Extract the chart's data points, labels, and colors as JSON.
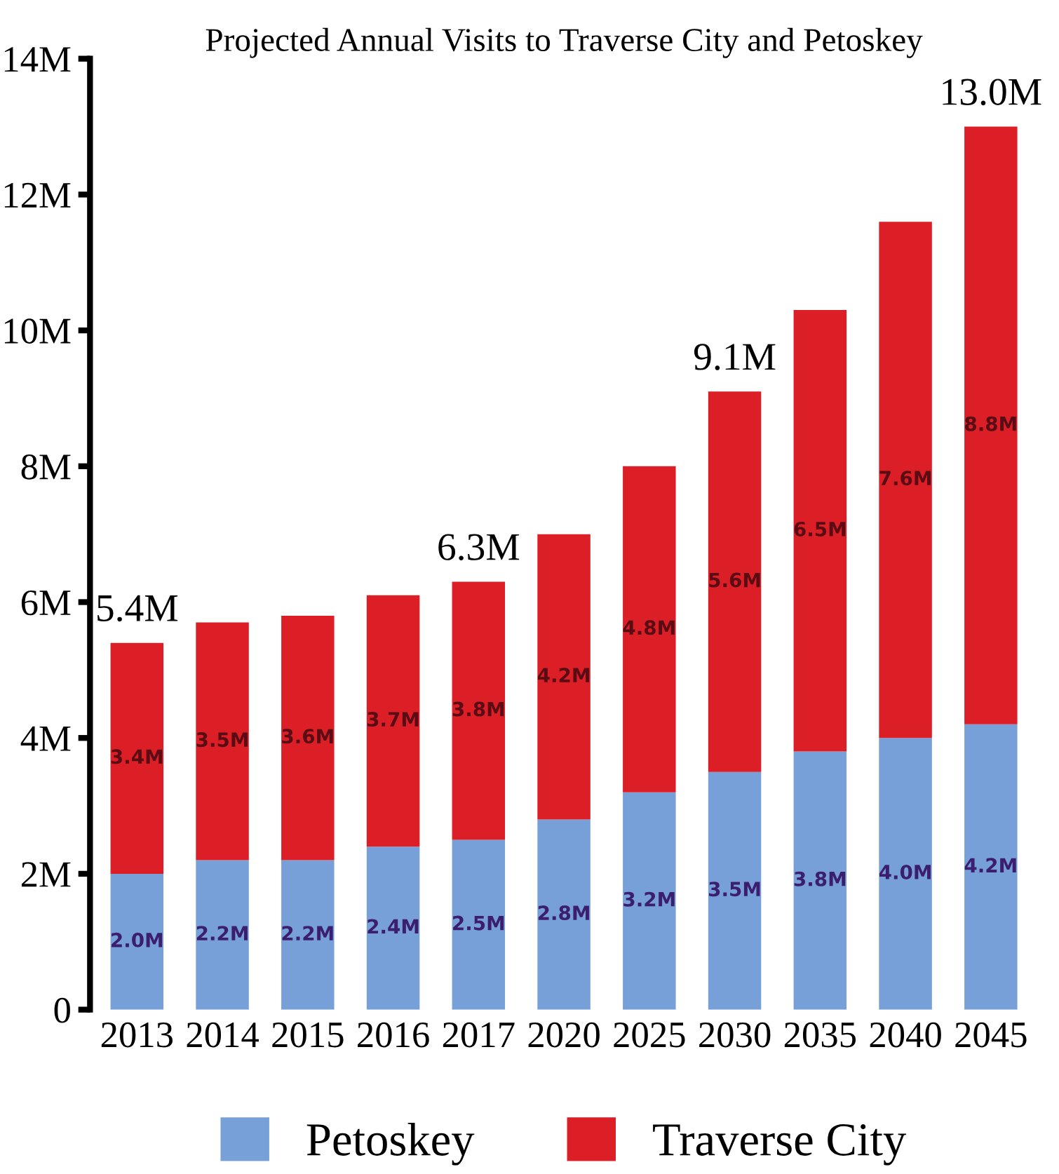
{
  "chart_data": {
    "type": "bar",
    "title": "Projected Annual Visits to Traverse City and Petoskey",
    "stacked": true,
    "categories": [
      "2013",
      "2014",
      "2015",
      "2016",
      "2017",
      "2020",
      "2025",
      "2030",
      "2035",
      "2040",
      "2045"
    ],
    "series": [
      {
        "name": "Petoskey",
        "color": "#78a0d8",
        "values": [
          2.0,
          2.2,
          2.2,
          2.4,
          2.5,
          2.8,
          3.2,
          3.5,
          3.8,
          4.0,
          4.2
        ],
        "value_labels": [
          "2.0M",
          "2.2M",
          "2.2M",
          "2.4M",
          "2.5M",
          "2.8M",
          "3.2M",
          "3.5M",
          "3.8M",
          "4.0M",
          "4.2M"
        ]
      },
      {
        "name": "Traverse City",
        "color": "#dc1f26",
        "values": [
          3.4,
          3.5,
          3.6,
          3.7,
          3.8,
          4.2,
          4.8,
          5.6,
          6.5,
          7.6,
          8.8
        ],
        "value_labels": [
          "3.4M",
          "3.5M",
          "3.6M",
          "3.7M",
          "3.8M",
          "4.2M",
          "4.8M",
          "5.6M",
          "6.5M",
          "7.6M",
          "8.8M"
        ]
      }
    ],
    "totals": [
      "5.4M",
      null,
      null,
      null,
      "6.3M",
      null,
      null,
      "9.1M",
      null,
      null,
      "13.0M"
    ],
    "ylim": [
      0,
      14
    ],
    "yticks": [
      0,
      {
        "value": 2,
        "label": "2M"
      },
      {
        "value": 4,
        "label": "4M"
      },
      {
        "value": 6,
        "label": "6M"
      },
      {
        "value": 8,
        "label": "8M"
      },
      {
        "value": 10,
        "label": "10M"
      },
      {
        "value": 12,
        "label": "12M"
      },
      {
        "value": 14,
        "label": "14M"
      }
    ],
    "legend": "bottom",
    "grid": false
  }
}
